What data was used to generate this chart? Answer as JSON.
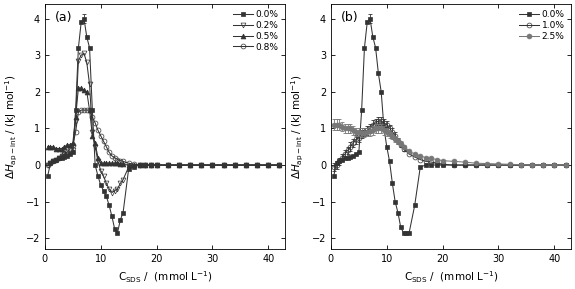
{
  "panel_a": {
    "label": "(a)",
    "series": [
      {
        "name": "0.0%",
        "marker": "s",
        "fillstyle": "full",
        "color": "#333333",
        "x": [
          0.5,
          1.0,
          1.5,
          2.0,
          2.5,
          3.0,
          3.5,
          4.0,
          4.5,
          5.0,
          5.5,
          6.0,
          6.5,
          7.0,
          7.5,
          8.0,
          8.5,
          9.0,
          9.5,
          10.0,
          10.5,
          11.0,
          11.5,
          12.0,
          12.5,
          13.0,
          13.5,
          14.0,
          15.0,
          16.0,
          17.0,
          18.0,
          19.0,
          20.0,
          22.0,
          24.0,
          26.0,
          28.0,
          30.0,
          32.0,
          34.0,
          36.0,
          38.0,
          40.0,
          42.0
        ],
        "y": [
          -0.3,
          0.05,
          0.1,
          0.15,
          0.18,
          0.2,
          0.22,
          0.25,
          0.3,
          0.35,
          1.5,
          3.2,
          3.9,
          4.0,
          3.5,
          3.2,
          1.5,
          0.0,
          -0.3,
          -0.55,
          -0.7,
          -0.85,
          -1.1,
          -1.4,
          -1.75,
          -1.85,
          -1.5,
          -1.3,
          -0.1,
          -0.05,
          0.0,
          0.0,
          0.0,
          0.0,
          0.0,
          0.0,
          0.0,
          0.0,
          0.0,
          0.0,
          0.0,
          0.0,
          0.0,
          0.0,
          0.0
        ],
        "yerr": [
          0.0,
          0.0,
          0.0,
          0.0,
          0.0,
          0.0,
          0.0,
          0.0,
          0.0,
          0.0,
          0.0,
          0.0,
          0.0,
          0.12,
          0.0,
          0.0,
          0.0,
          0.0,
          0.0,
          0.0,
          0.0,
          0.0,
          0.0,
          0.0,
          0.0,
          0.0,
          0.0,
          0.0,
          0.0,
          0.0,
          0.0,
          0.0,
          0.0,
          0.0,
          0.0,
          0.0,
          0.0,
          0.0,
          0.0,
          0.0,
          0.0,
          0.0,
          0.0,
          0.0,
          0.0
        ]
      },
      {
        "name": "0.2%",
        "marker": "v",
        "fillstyle": "none",
        "color": "#333333",
        "x": [
          0.5,
          1.0,
          1.5,
          2.0,
          2.5,
          3.0,
          3.5,
          4.0,
          4.5,
          5.0,
          5.5,
          6.0,
          6.5,
          7.0,
          7.5,
          8.0,
          8.5,
          9.0,
          9.5,
          10.0,
          10.5,
          11.0,
          11.5,
          12.0,
          12.5,
          13.0,
          13.5,
          14.0,
          15.0,
          16.0,
          17.0,
          18.0,
          19.0,
          20.0,
          22.0,
          24.0,
          26.0,
          28.0,
          30.0,
          32.0,
          34.0,
          36.0,
          38.0,
          40.0,
          42.0
        ],
        "y": [
          0.0,
          0.05,
          0.1,
          0.15,
          0.2,
          0.25,
          0.3,
          0.3,
          0.35,
          0.4,
          1.2,
          2.85,
          3.0,
          3.05,
          2.8,
          2.2,
          0.9,
          0.5,
          0.1,
          -0.15,
          -0.3,
          -0.5,
          -0.65,
          -0.75,
          -0.7,
          -0.65,
          -0.5,
          -0.4,
          -0.05,
          -0.02,
          0.0,
          0.0,
          0.0,
          0.0,
          0.0,
          0.0,
          0.0,
          0.0,
          0.0,
          0.0,
          0.0,
          0.0,
          0.0,
          0.0,
          0.0
        ],
        "yerr": [
          0.0,
          0.0,
          0.0,
          0.0,
          0.0,
          0.0,
          0.0,
          0.0,
          0.0,
          0.0,
          0.0,
          0.0,
          0.0,
          0.0,
          0.0,
          0.0,
          0.0,
          0.0,
          0.0,
          0.0,
          0.0,
          0.0,
          0.0,
          0.0,
          0.0,
          0.0,
          0.0,
          0.0,
          0.0,
          0.0,
          0.0,
          0.0,
          0.0,
          0.0,
          0.0,
          0.0,
          0.0,
          0.0,
          0.0,
          0.0,
          0.0,
          0.0,
          0.0,
          0.0,
          0.0
        ]
      },
      {
        "name": "0.5%",
        "marker": "^",
        "fillstyle": "full",
        "color": "#333333",
        "x": [
          0.5,
          1.0,
          1.5,
          2.0,
          2.5,
          3.0,
          3.5,
          4.0,
          4.5,
          5.0,
          5.5,
          6.0,
          6.5,
          7.0,
          7.5,
          8.0,
          8.5,
          9.0,
          9.5,
          10.0,
          10.5,
          11.0,
          11.5,
          12.0,
          12.5,
          13.0,
          13.5,
          14.0,
          15.0,
          16.0,
          17.0,
          18.0,
          19.0,
          20.0,
          22.0,
          24.0,
          26.0,
          28.0,
          30.0,
          32.0,
          34.0,
          36.0,
          38.0,
          40.0,
          42.0
        ],
        "y": [
          0.5,
          0.5,
          0.5,
          0.45,
          0.45,
          0.45,
          0.5,
          0.55,
          0.55,
          0.6,
          1.3,
          2.1,
          2.1,
          2.05,
          2.0,
          1.5,
          0.8,
          0.6,
          0.2,
          0.05,
          0.05,
          0.05,
          0.05,
          0.05,
          0.05,
          0.05,
          0.03,
          0.02,
          0.0,
          0.0,
          0.0,
          0.0,
          0.0,
          0.0,
          0.0,
          0.0,
          0.0,
          0.0,
          0.0,
          0.0,
          0.0,
          0.0,
          0.0,
          0.0,
          0.0
        ],
        "yerr": [
          0.0,
          0.0,
          0.0,
          0.0,
          0.0,
          0.0,
          0.0,
          0.0,
          0.0,
          0.0,
          0.0,
          0.0,
          0.0,
          0.0,
          0.0,
          0.0,
          0.0,
          0.0,
          0.0,
          0.0,
          0.0,
          0.0,
          0.0,
          0.0,
          0.0,
          0.0,
          0.0,
          0.0,
          0.0,
          0.0,
          0.0,
          0.0,
          0.0,
          0.0,
          0.0,
          0.0,
          0.0,
          0.0,
          0.0,
          0.0,
          0.0,
          0.0,
          0.0,
          0.0,
          0.0
        ]
      },
      {
        "name": "0.8%",
        "marker": "o",
        "fillstyle": "none",
        "color": "#333333",
        "x": [
          0.5,
          1.0,
          1.5,
          2.0,
          2.5,
          3.0,
          3.5,
          4.0,
          4.5,
          5.0,
          5.5,
          6.0,
          6.5,
          7.0,
          7.5,
          8.0,
          8.5,
          9.0,
          9.5,
          10.0,
          10.5,
          11.0,
          11.5,
          12.0,
          12.5,
          13.0,
          13.5,
          14.0,
          15.0,
          16.0,
          17.0,
          18.0,
          19.0,
          20.0,
          22.0,
          24.0,
          26.0,
          28.0,
          30.0,
          32.0,
          34.0,
          36.0,
          38.0,
          40.0,
          42.0
        ],
        "y": [
          0.0,
          0.05,
          0.1,
          0.15,
          0.2,
          0.25,
          0.3,
          0.35,
          0.45,
          0.55,
          0.9,
          1.45,
          1.5,
          1.5,
          1.5,
          1.5,
          1.3,
          1.15,
          0.95,
          0.8,
          0.65,
          0.5,
          0.35,
          0.25,
          0.2,
          0.15,
          0.12,
          0.1,
          0.05,
          0.02,
          0.0,
          0.0,
          0.0,
          0.0,
          0.0,
          0.0,
          0.0,
          0.0,
          0.0,
          0.0,
          0.0,
          0.0,
          0.0,
          0.0,
          0.0
        ],
        "yerr": [
          0.0,
          0.0,
          0.0,
          0.0,
          0.0,
          0.0,
          0.0,
          0.0,
          0.0,
          0.0,
          0.0,
          0.0,
          0.0,
          0.0,
          0.0,
          0.0,
          0.0,
          0.0,
          0.0,
          0.0,
          0.0,
          0.0,
          0.0,
          0.0,
          0.0,
          0.0,
          0.0,
          0.0,
          0.0,
          0.0,
          0.0,
          0.0,
          0.0,
          0.0,
          0.0,
          0.0,
          0.0,
          0.0,
          0.0,
          0.0,
          0.0,
          0.0,
          0.0,
          0.0,
          0.0
        ]
      }
    ],
    "xlim": [
      0,
      43
    ],
    "ylim": [
      -2.3,
      4.4
    ],
    "xticks": [
      0,
      10,
      20,
      30,
      40
    ],
    "yticks": [
      -2,
      -1,
      0,
      1,
      2,
      3,
      4
    ],
    "xlabel": "C$_\\mathregular{SDS}$ /  (mmol L$^\\mathregular{-1}$)",
    "ylabel": "$\\Delta H_\\mathregular{ap-int}$ / (kJ mol$^\\mathregular{-1}$)"
  },
  "panel_b": {
    "label": "(b)",
    "series": [
      {
        "name": "0.0%",
        "marker": "s",
        "fillstyle": "full",
        "color": "#333333",
        "x": [
          0.5,
          1.0,
          1.5,
          2.0,
          2.5,
          3.0,
          3.5,
          4.0,
          4.5,
          5.0,
          5.5,
          6.0,
          6.5,
          7.0,
          7.5,
          8.0,
          8.5,
          9.0,
          9.5,
          10.0,
          10.5,
          11.0,
          11.5,
          12.0,
          12.5,
          13.0,
          13.5,
          14.0,
          15.0,
          16.0,
          17.0,
          18.0,
          19.0,
          20.0,
          22.0,
          24.0,
          26.0,
          28.0,
          30.0,
          32.0,
          34.0,
          36.0,
          38.0,
          40.0,
          42.0
        ],
        "y": [
          -0.3,
          0.05,
          0.1,
          0.15,
          0.18,
          0.2,
          0.22,
          0.25,
          0.3,
          0.35,
          1.5,
          3.2,
          3.9,
          4.0,
          3.5,
          3.2,
          2.5,
          2.0,
          1.0,
          0.5,
          0.1,
          -0.5,
          -1.0,
          -1.3,
          -1.7,
          -1.85,
          -1.85,
          -1.85,
          -1.1,
          -0.05,
          0.0,
          0.0,
          0.0,
          0.0,
          0.0,
          0.0,
          0.0,
          0.0,
          0.0,
          0.0,
          0.0,
          0.0,
          0.0,
          0.0,
          0.0
        ],
        "yerr": [
          0.0,
          0.0,
          0.0,
          0.0,
          0.0,
          0.0,
          0.0,
          0.0,
          0.0,
          0.0,
          0.0,
          0.0,
          0.0,
          0.12,
          0.0,
          0.0,
          0.0,
          0.0,
          0.0,
          0.0,
          0.0,
          0.0,
          0.0,
          0.0,
          0.0,
          0.0,
          0.0,
          0.0,
          0.0,
          0.0,
          0.0,
          0.0,
          0.0,
          0.0,
          0.0,
          0.0,
          0.0,
          0.0,
          0.0,
          0.0,
          0.0,
          0.0,
          0.0,
          0.0,
          0.0
        ]
      },
      {
        "name": "1.0%",
        "marker": "o",
        "fillstyle": "none",
        "color": "#333333",
        "x": [
          0.5,
          1.0,
          1.5,
          2.0,
          2.5,
          3.0,
          3.5,
          4.0,
          4.5,
          5.0,
          5.5,
          6.0,
          6.5,
          7.0,
          7.5,
          8.0,
          8.5,
          9.0,
          9.5,
          10.0,
          10.5,
          11.0,
          11.5,
          12.0,
          12.5,
          13.0,
          14.0,
          15.0,
          16.0,
          17.0,
          18.0,
          19.0,
          20.0,
          22.0,
          24.0,
          26.0,
          28.0,
          30.0,
          32.0,
          34.0,
          36.0,
          38.0,
          40.0,
          42.0
        ],
        "y": [
          -0.05,
          0.0,
          0.1,
          0.2,
          0.3,
          0.4,
          0.5,
          0.6,
          0.7,
          0.75,
          0.85,
          0.9,
          0.95,
          1.0,
          1.1,
          1.15,
          1.2,
          1.2,
          1.15,
          1.1,
          1.0,
          0.9,
          0.8,
          0.65,
          0.55,
          0.45,
          0.3,
          0.22,
          0.15,
          0.1,
          0.08,
          0.05,
          0.02,
          0.0,
          0.0,
          0.0,
          0.0,
          0.0,
          0.0,
          0.0,
          0.0,
          0.0,
          0.0,
          0.0
        ],
        "yerr": [
          0.1,
          0.1,
          0.1,
          0.1,
          0.1,
          0.1,
          0.12,
          0.12,
          0.12,
          0.12,
          0.12,
          0.12,
          0.12,
          0.12,
          0.12,
          0.12,
          0.12,
          0.12,
          0.12,
          0.1,
          0.1,
          0.1,
          0.1,
          0.08,
          0.07,
          0.06,
          0.0,
          0.0,
          0.0,
          0.0,
          0.0,
          0.0,
          0.0,
          0.0,
          0.0,
          0.0,
          0.0,
          0.0,
          0.0,
          0.0,
          0.0,
          0.0,
          0.0,
          0.0
        ]
      },
      {
        "name": "2.5%",
        "marker": "o",
        "fillstyle": "full",
        "color": "#777777",
        "markersize_override": 3.5,
        "x": [
          0.5,
          1.0,
          1.5,
          2.0,
          2.5,
          3.0,
          3.5,
          4.0,
          4.5,
          5.0,
          5.5,
          6.0,
          6.5,
          7.0,
          7.5,
          8.0,
          8.5,
          9.0,
          9.5,
          10.0,
          10.5,
          11.0,
          11.5,
          12.0,
          12.5,
          13.0,
          14.0,
          15.0,
          16.0,
          17.0,
          18.0,
          19.0,
          20.0,
          22.0,
          24.0,
          26.0,
          28.0,
          30.0,
          32.0,
          34.0,
          36.0,
          38.0,
          40.0,
          42.0
        ],
        "y": [
          1.1,
          1.1,
          1.1,
          1.05,
          1.0,
          1.0,
          1.0,
          0.95,
          0.9,
          0.9,
          0.88,
          0.88,
          0.9,
          0.92,
          0.95,
          1.0,
          1.0,
          1.0,
          0.95,
          0.9,
          0.85,
          0.8,
          0.72,
          0.65,
          0.58,
          0.5,
          0.38,
          0.3,
          0.25,
          0.2,
          0.18,
          0.15,
          0.12,
          0.1,
          0.08,
          0.05,
          0.04,
          0.03,
          0.02,
          0.01,
          0.0,
          0.0,
          0.0,
          0.0
        ],
        "yerr": [
          0.15,
          0.15,
          0.15,
          0.13,
          0.12,
          0.12,
          0.12,
          0.12,
          0.12,
          0.12,
          0.12,
          0.12,
          0.12,
          0.12,
          0.12,
          0.13,
          0.13,
          0.13,
          0.12,
          0.12,
          0.1,
          0.1,
          0.08,
          0.08,
          0.07,
          0.06,
          0.0,
          0.0,
          0.0,
          0.0,
          0.0,
          0.0,
          0.0,
          0.0,
          0.0,
          0.0,
          0.0,
          0.0,
          0.0,
          0.0,
          0.0,
          0.0,
          0.0,
          0.0
        ]
      }
    ],
    "xlim": [
      0,
      43
    ],
    "ylim": [
      -2.3,
      4.4
    ],
    "xticks": [
      0,
      10,
      20,
      30,
      40
    ],
    "yticks": [
      -2,
      -1,
      0,
      1,
      2,
      3,
      4
    ],
    "xlabel": "C$_\\mathregular{SDS}$ /  (mmol L$^\\mathregular{-1}$)",
    "ylabel": "$\\Delta H_\\mathregular{ap-int}$ / (kJ mol$^\\mathregular{-1}$)"
  },
  "background_color": "#ffffff",
  "markersize": 3.5,
  "linewidth": 0.75,
  "capsize": 1.5,
  "elinewidth": 0.6
}
